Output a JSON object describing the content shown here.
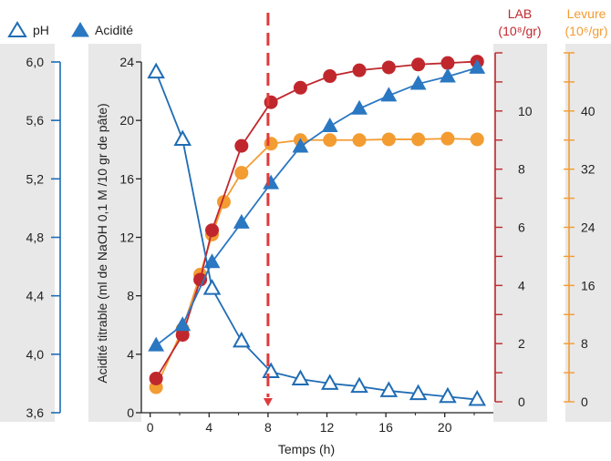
{
  "colors": {
    "ph": "#1f6cb4",
    "acidity": "#2a77c2",
    "lab": "#c0272d",
    "levure": "#f39c32",
    "panel": "#e8e8e8",
    "marker_line": "#e03a3a"
  },
  "legend": {
    "ph_label": "pH",
    "acidity_label": "Acidité"
  },
  "axes": {
    "x_label": "Temps (h)",
    "acidity_label": "Acidité titrable (ml de NaOH 0,1 M /10 gr de pâte)",
    "lab_title_line1": "LAB",
    "lab_title_line2": "(10⁸/gr)",
    "levure_title_line1": "Levure",
    "levure_title_line2": "(10⁶/gr)"
  },
  "chart_data": {
    "type": "line",
    "x": {
      "label": "Temps (h)",
      "ticks": [
        "0",
        "4",
        "8",
        "12",
        "16",
        "20"
      ],
      "range": [
        -0.6,
        23.3
      ]
    },
    "y_axes": {
      "ph": {
        "range": [
          3.6,
          6.0
        ],
        "ticks": [
          "3,6",
          "4,0",
          "4,4",
          "4,8",
          "5,2",
          "5,6",
          "6,0"
        ]
      },
      "acidity": {
        "range": [
          0,
          24
        ],
        "ticks": [
          "0",
          "4",
          "8",
          "12",
          "16",
          "20",
          "24"
        ]
      },
      "lab": {
        "range": [
          0,
          12
        ],
        "ticks": [
          "0",
          "2",
          "4",
          "6",
          "8",
          "10"
        ]
      },
      "levure": {
        "range": [
          0,
          48
        ],
        "ticks": [
          "0",
          "8",
          "16",
          "24",
          "32",
          "40"
        ]
      }
    },
    "series": [
      {
        "name": "pH",
        "axis": "ph",
        "marker": "triangle-open",
        "color": "#1f6cb4",
        "points": [
          [
            0.4,
            5.93
          ],
          [
            2.2,
            5.47
          ],
          [
            4.2,
            4.45
          ],
          [
            6.2,
            4.09
          ],
          [
            8.2,
            3.88
          ],
          [
            10.2,
            3.83
          ],
          [
            12.2,
            3.8
          ],
          [
            14.2,
            3.78
          ],
          [
            16.2,
            3.75
          ],
          [
            18.2,
            3.73
          ],
          [
            20.2,
            3.71
          ],
          [
            22.2,
            3.69
          ]
        ]
      },
      {
        "name": "Acidité",
        "axis": "acidity",
        "marker": "triangle-filled",
        "color": "#2a77c2",
        "points": [
          [
            0.4,
            4.6
          ],
          [
            2.2,
            6.0
          ],
          [
            4.2,
            10.3
          ],
          [
            6.2,
            13.0
          ],
          [
            8.2,
            15.7
          ],
          [
            10.2,
            18.2
          ],
          [
            12.2,
            19.6
          ],
          [
            14.2,
            20.8
          ],
          [
            16.2,
            21.7
          ],
          [
            18.2,
            22.5
          ],
          [
            20.2,
            23.0
          ],
          [
            22.2,
            23.6
          ]
        ]
      },
      {
        "name": "LAB",
        "axis": "lab",
        "marker": "circle",
        "color": "#c0272d",
        "points": [
          [
            0.4,
            0.8
          ],
          [
            2.2,
            2.3
          ],
          [
            3.4,
            4.2
          ],
          [
            4.2,
            5.9
          ],
          [
            6.2,
            8.8
          ],
          [
            8.2,
            10.3
          ],
          [
            10.2,
            10.8
          ],
          [
            12.2,
            11.2
          ],
          [
            14.2,
            11.4
          ],
          [
            16.2,
            11.5
          ],
          [
            18.2,
            11.6
          ],
          [
            20.2,
            11.65
          ],
          [
            22.2,
            11.7
          ]
        ]
      },
      {
        "name": "Levure",
        "axis": "levure",
        "marker": "circle",
        "color": "#f39c32",
        "points": [
          [
            0.4,
            2.0
          ],
          [
            2.2,
            10.0
          ],
          [
            3.4,
            17.5
          ],
          [
            4.2,
            23.0
          ],
          [
            5.0,
            27.5
          ],
          [
            6.2,
            31.5
          ],
          [
            8.2,
            35.5
          ],
          [
            10.2,
            36.0
          ],
          [
            12.2,
            36.0
          ],
          [
            14.2,
            36.0
          ],
          [
            16.2,
            36.1
          ],
          [
            18.2,
            36.1
          ],
          [
            20.2,
            36.2
          ],
          [
            22.2,
            36.1
          ]
        ]
      }
    ],
    "annotations": [
      {
        "type": "vertical-dashed-line",
        "x": 8,
        "color": "#e03a3a",
        "arrow": "down"
      }
    ],
    "grid": false,
    "legend_position": "top-left"
  }
}
